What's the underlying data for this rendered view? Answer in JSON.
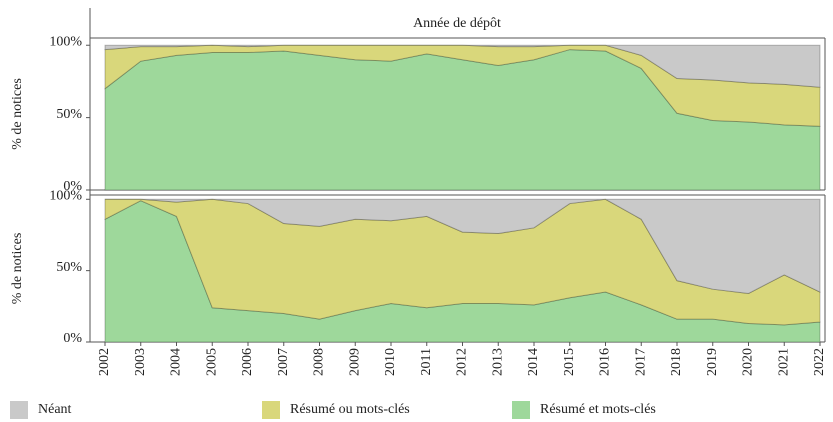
{
  "chart_data": [
    {
      "type": "stacked_area",
      "title": "Année de dépôt",
      "ylabel": "% de notices",
      "categories": [
        "2002",
        "2003",
        "2004",
        "2005",
        "2006",
        "2007",
        "2008",
        "2009",
        "2010",
        "2011",
        "2012",
        "2013",
        "2014",
        "2015",
        "2016",
        "2017",
        "2018",
        "2019",
        "2020",
        "2021",
        "2022"
      ],
      "ylim": [
        0,
        105
      ],
      "yticks": [
        {
          "value": 0,
          "label": "0%"
        },
        {
          "value": 50,
          "label": "50%"
        },
        {
          "value": 100,
          "label": "100%"
        }
      ],
      "series": [
        {
          "name": "Résumé et mots-clés",
          "color": "#9ed89b",
          "values": [
            70,
            89,
            93,
            95,
            95,
            96,
            93,
            90,
            89,
            94,
            90,
            86,
            90,
            97,
            96,
            84,
            53,
            48,
            47,
            45,
            44
          ]
        },
        {
          "name": "Résumé ou mots-clés",
          "color": "#d9d77b",
          "values": [
            27,
            10,
            6,
            5,
            4,
            4,
            7,
            10,
            11,
            6,
            10,
            13,
            9,
            3,
            4,
            9,
            24,
            28,
            27,
            28,
            27
          ]
        },
        {
          "name": "Néant",
          "color": "#c9c9c9",
          "values": [
            3,
            1,
            1,
            0,
            1,
            0,
            0,
            0,
            0,
            0,
            0,
            1,
            1,
            0,
            0,
            7,
            23,
            24,
            26,
            27,
            29
          ]
        }
      ]
    },
    {
      "type": "stacked_area",
      "ylabel": "% de notices",
      "categories": [
        "2002",
        "2003",
        "2004",
        "2005",
        "2006",
        "2007",
        "2008",
        "2009",
        "2010",
        "2011",
        "2012",
        "2013",
        "2014",
        "2015",
        "2016",
        "2017",
        "2018",
        "2019",
        "2020",
        "2021",
        "2022"
      ],
      "ylim": [
        0,
        103
      ],
      "yticks": [
        {
          "value": 0,
          "label": "0%"
        },
        {
          "value": 50,
          "label": "50%"
        },
        {
          "value": 100,
          "label": "100%"
        }
      ],
      "series": [
        {
          "name": "Résumé et mots-clés",
          "color": "#9ed89b",
          "values": [
            86,
            99,
            88,
            24,
            22,
            20,
            16,
            22,
            27,
            24,
            27,
            27,
            26,
            31,
            35,
            26,
            16,
            16,
            13,
            12,
            14
          ]
        },
        {
          "name": "Résumé ou mots-clés",
          "color": "#d9d77b",
          "values": [
            14,
            1,
            10,
            76,
            75,
            63,
            65,
            64,
            58,
            64,
            50,
            49,
            54,
            66,
            65,
            60,
            27,
            21,
            21,
            35,
            21
          ]
        },
        {
          "name": "Néant",
          "color": "#c9c9c9",
          "values": [
            0,
            0,
            2,
            0,
            3,
            17,
            19,
            14,
            15,
            12,
            23,
            24,
            20,
            3,
            0,
            14,
            57,
            63,
            66,
            53,
            65
          ]
        }
      ]
    }
  ]
}
